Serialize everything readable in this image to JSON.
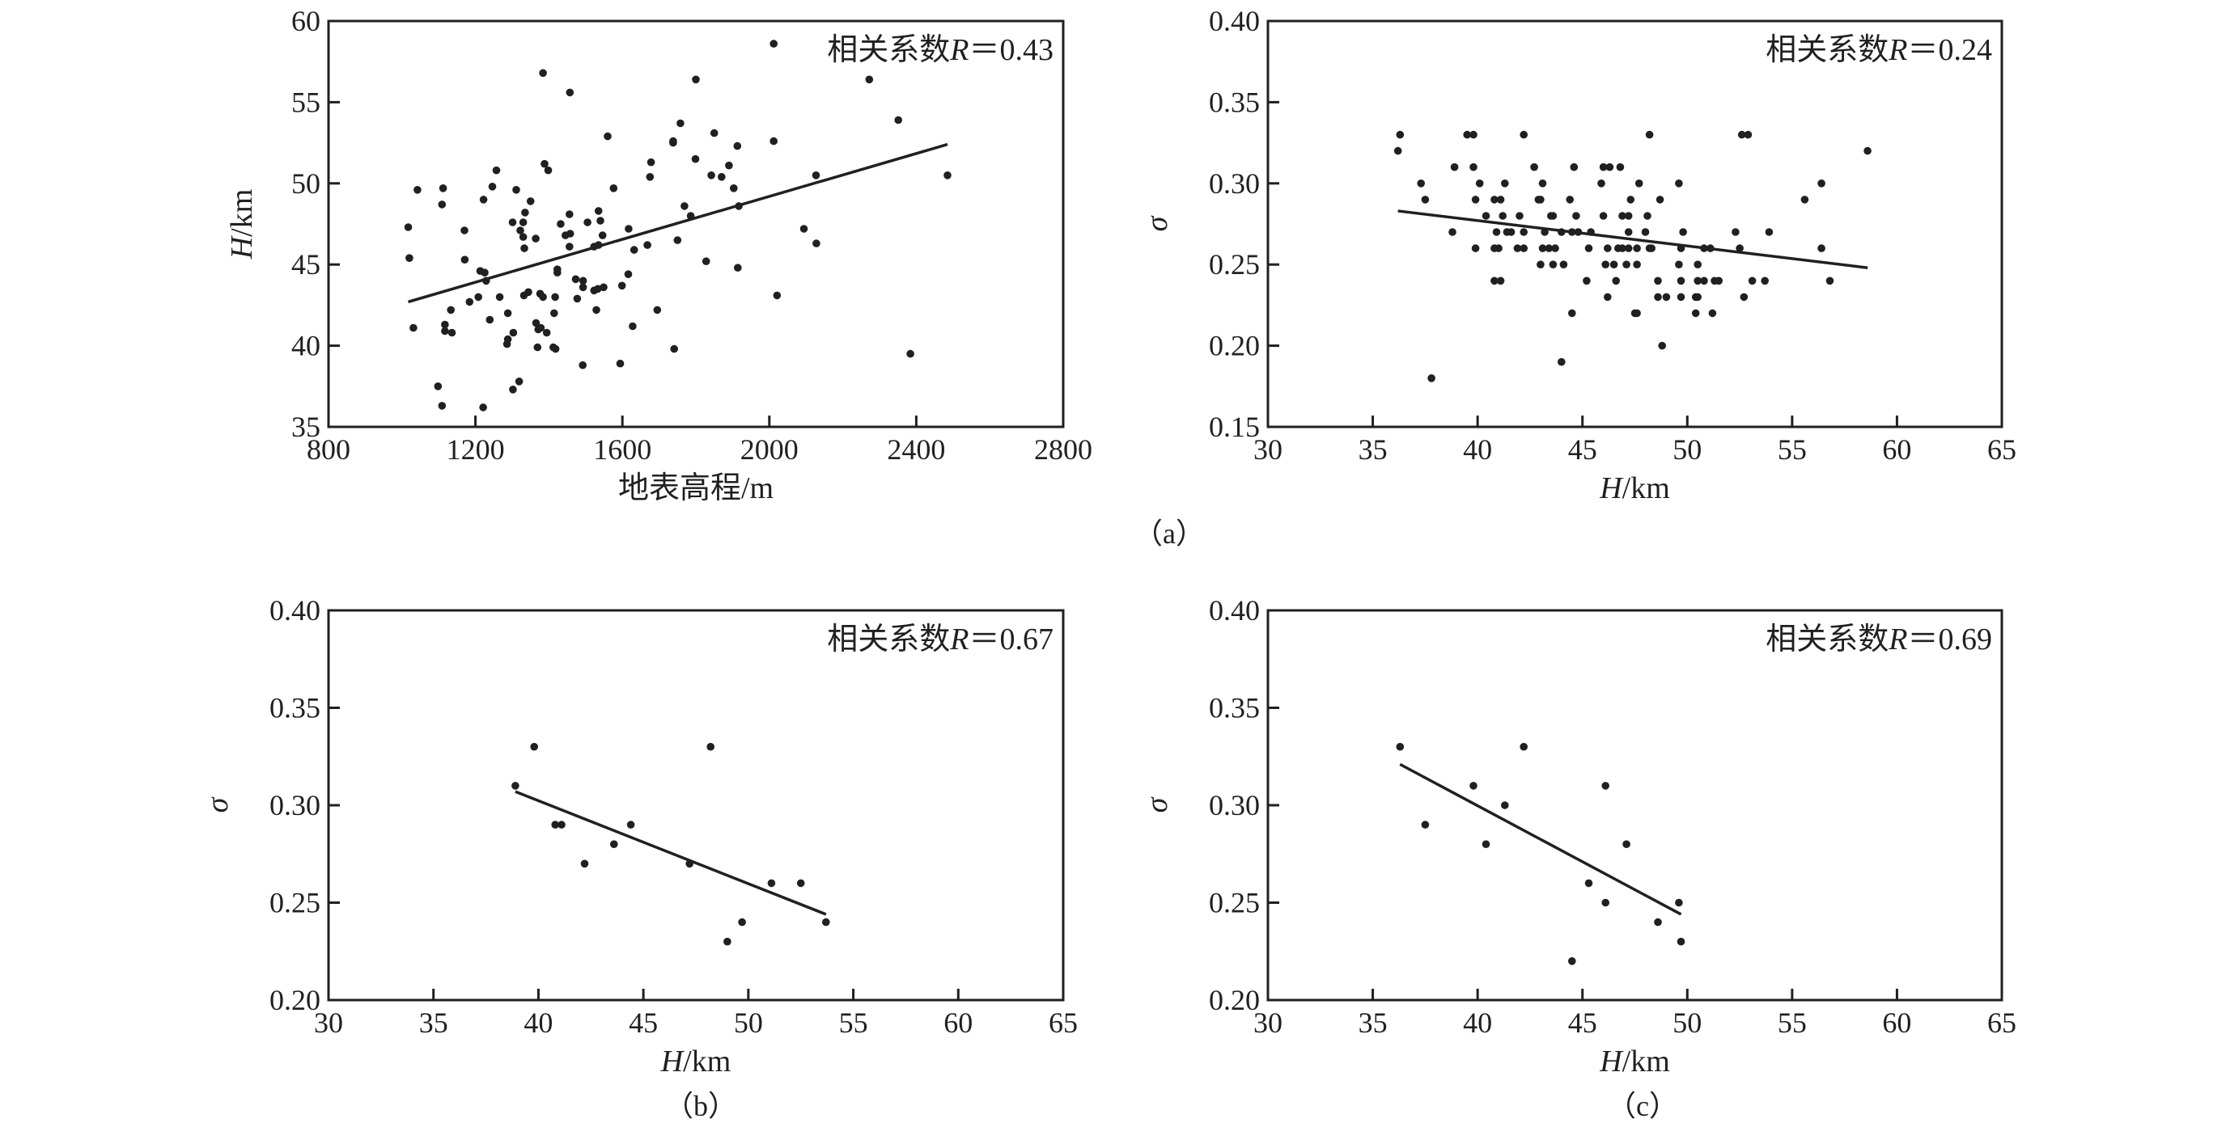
{
  "chart_data": [
    {
      "id": "a-left",
      "type": "scatter",
      "title": "",
      "xlabel": "地表高程/m",
      "ylabel": {
        "var": "H",
        "unit": "/km"
      },
      "xlim": [
        800,
        2800
      ],
      "ylim": [
        35,
        60
      ],
      "xticks": [
        "800",
        "1200",
        "1600",
        "2000",
        "2400",
        "2800"
      ],
      "yticks": [
        "35",
        "40",
        "45",
        "50",
        "55",
        "60"
      ],
      "annotation": {
        "prefix": "相关系数",
        "var": "R",
        "value": "＝0.43"
      },
      "fit_line": [
        [
          1017,
          42.7
        ],
        [
          2485,
          52.4
        ]
      ],
      "points": [
        [
          1384,
          56.8
        ],
        [
          1457,
          55.6
        ],
        [
          1800,
          56.4
        ],
        [
          1758,
          53.7
        ],
        [
          1738,
          52.6
        ],
        [
          1738,
          52.5
        ],
        [
          1850,
          53.1
        ],
        [
          1560,
          52.9
        ],
        [
          1678,
          51.3
        ],
        [
          1675,
          50.4
        ],
        [
          1799,
          51.5
        ],
        [
          1842,
          50.5
        ],
        [
          1870,
          50.4
        ],
        [
          1890,
          51.1
        ],
        [
          1388,
          51.2
        ],
        [
          1398,
          50.8
        ],
        [
          1257,
          50.8
        ],
        [
          1246,
          49.8
        ],
        [
          1311,
          49.6
        ],
        [
          1222,
          49.0
        ],
        [
          1112,
          49.7
        ],
        [
          1042,
          49.6
        ],
        [
          1109,
          48.7
        ],
        [
          1350,
          48.9
        ],
        [
          1335,
          48.2
        ],
        [
          1576,
          49.7
        ],
        [
          1535,
          48.3
        ],
        [
          1456,
          48.1
        ],
        [
          1540,
          47.7
        ],
        [
          1301,
          47.6
        ],
        [
          1330,
          47.6
        ],
        [
          1505,
          47.6
        ],
        [
          1432,
          47.5
        ],
        [
          1017,
          47.3
        ],
        [
          1170,
          47.1
        ],
        [
          1322,
          47.1
        ],
        [
          1330,
          46.7
        ],
        [
          1364,
          46.6
        ],
        [
          1445,
          46.8
        ],
        [
          1458,
          46.9
        ],
        [
          1546,
          46.8
        ],
        [
          1617,
          47.2
        ],
        [
          1769,
          48.6
        ],
        [
          1786,
          48.0
        ],
        [
          1456,
          46.1
        ],
        [
          1523,
          46.1
        ],
        [
          1535,
          46.2
        ],
        [
          1668,
          46.2
        ],
        [
          1632,
          45.9
        ],
        [
          1750,
          46.5
        ],
        [
          1333,
          46.0
        ],
        [
          1020,
          45.4
        ],
        [
          1171,
          45.3
        ],
        [
          1828,
          45.2
        ],
        [
          1213,
          44.6
        ],
        [
          1225,
          44.5
        ],
        [
          1229,
          44.0
        ],
        [
          1423,
          44.7
        ],
        [
          1423,
          44.5
        ],
        [
          1473,
          44.1
        ],
        [
          1493,
          44.0
        ],
        [
          1493,
          43.6
        ],
        [
          1616,
          44.4
        ],
        [
          1599,
          43.7
        ],
        [
          1523,
          43.4
        ],
        [
          1533,
          43.5
        ],
        [
          1549,
          43.6
        ],
        [
          1344,
          43.3
        ],
        [
          1376,
          43.2
        ],
        [
          1384,
          43.0
        ],
        [
          1332,
          43.1
        ],
        [
          1266,
          43.0
        ],
        [
          1208,
          43.0
        ],
        [
          1184,
          42.7
        ],
        [
          1417,
          43.0
        ],
        [
          1477,
          42.9
        ],
        [
          1133,
          42.2
        ],
        [
          1529,
          42.2
        ],
        [
          1288,
          42.0
        ],
        [
          1414,
          42.0
        ],
        [
          1695,
          42.2
        ],
        [
          1239,
          41.6
        ],
        [
          1117,
          41.3
        ],
        [
          1117,
          40.9
        ],
        [
          1136,
          40.8
        ],
        [
          1031,
          41.1
        ],
        [
          1365,
          41.4
        ],
        [
          1371,
          41.0
        ],
        [
          1378,
          41.1
        ],
        [
          1394,
          40.8
        ],
        [
          1628,
          41.2
        ],
        [
          1303,
          40.8
        ],
        [
          1288,
          40.4
        ],
        [
          1286,
          40.1
        ],
        [
          1369,
          39.9
        ],
        [
          1412,
          39.9
        ],
        [
          1418,
          39.8
        ],
        [
          1741,
          39.8
        ],
        [
          1492,
          38.8
        ],
        [
          1594,
          38.9
        ],
        [
          1098,
          37.5
        ],
        [
          1319,
          37.8
        ],
        [
          1302,
          37.3
        ],
        [
          1109,
          36.3
        ],
        [
          1221,
          36.2
        ],
        [
          2012,
          58.6
        ],
        [
          2272,
          56.4
        ],
        [
          2351,
          53.9
        ],
        [
          1913,
          52.3
        ],
        [
          2012,
          52.6
        ],
        [
          1903,
          49.7
        ],
        [
          2127,
          50.5
        ],
        [
          2485,
          50.5
        ],
        [
          1917,
          48.6
        ],
        [
          2094,
          47.2
        ],
        [
          2128,
          46.3
        ],
        [
          1914,
          44.8
        ],
        [
          2021,
          43.1
        ],
        [
          2384,
          39.5
        ]
      ]
    },
    {
      "id": "a-right",
      "type": "scatter",
      "title": "",
      "xlabel": {
        "var": "H",
        "unit": "/km"
      },
      "ylabel": "σ",
      "xlim": [
        30,
        65
      ],
      "ylim": [
        0.15,
        0.4
      ],
      "xticks": [
        "30",
        "35",
        "40",
        "45",
        "50",
        "55",
        "60",
        "65"
      ],
      "yticks": [
        "0.15",
        "0.20",
        "0.25",
        "0.30",
        "0.35",
        "0.40"
      ],
      "annotation": {
        "prefix": "相关系数",
        "var": "R",
        "value": "＝0.24"
      },
      "caption": "（a）",
      "fit_line": [
        [
          36.2,
          0.283
        ],
        [
          58.6,
          0.248
        ]
      ],
      "points": [
        [
          36.3,
          0.33
        ],
        [
          39.5,
          0.33
        ],
        [
          39.8,
          0.33
        ],
        [
          42.2,
          0.33
        ],
        [
          48.2,
          0.33
        ],
        [
          52.6,
          0.33
        ],
        [
          52.9,
          0.33
        ],
        [
          36.2,
          0.32
        ],
        [
          58.6,
          0.32
        ],
        [
          38.9,
          0.31
        ],
        [
          39.8,
          0.31
        ],
        [
          42.7,
          0.31
        ],
        [
          44.6,
          0.31
        ],
        [
          46.0,
          0.31
        ],
        [
          46.3,
          0.31
        ],
        [
          46.8,
          0.31
        ],
        [
          37.3,
          0.3
        ],
        [
          40.1,
          0.3
        ],
        [
          41.3,
          0.3
        ],
        [
          43.1,
          0.3
        ],
        [
          45.9,
          0.3
        ],
        [
          47.7,
          0.3
        ],
        [
          49.6,
          0.3
        ],
        [
          56.4,
          0.3
        ],
        [
          37.5,
          0.29
        ],
        [
          39.9,
          0.29
        ],
        [
          40.8,
          0.29
        ],
        [
          41.1,
          0.29
        ],
        [
          42.9,
          0.29
        ],
        [
          43.0,
          0.29
        ],
        [
          44.4,
          0.29
        ],
        [
          47.3,
          0.29
        ],
        [
          48.7,
          0.29
        ],
        [
          55.6,
          0.29
        ],
        [
          40.4,
          0.28
        ],
        [
          41.2,
          0.28
        ],
        [
          42.0,
          0.28
        ],
        [
          43.5,
          0.28
        ],
        [
          43.6,
          0.28
        ],
        [
          44.7,
          0.28
        ],
        [
          46.0,
          0.28
        ],
        [
          46.9,
          0.28
        ],
        [
          47.2,
          0.28
        ],
        [
          48.1,
          0.28
        ],
        [
          38.8,
          0.27
        ],
        [
          40.9,
          0.27
        ],
        [
          41.4,
          0.27
        ],
        [
          41.6,
          0.27
        ],
        [
          42.2,
          0.27
        ],
        [
          43.2,
          0.27
        ],
        [
          44.0,
          0.27
        ],
        [
          44.5,
          0.27
        ],
        [
          44.8,
          0.27
        ],
        [
          45.4,
          0.27
        ],
        [
          47.2,
          0.27
        ],
        [
          48.0,
          0.27
        ],
        [
          49.8,
          0.27
        ],
        [
          52.3,
          0.27
        ],
        [
          53.9,
          0.27
        ],
        [
          39.9,
          0.26
        ],
        [
          40.8,
          0.26
        ],
        [
          41.0,
          0.26
        ],
        [
          41.9,
          0.26
        ],
        [
          42.2,
          0.26
        ],
        [
          43.1,
          0.26
        ],
        [
          43.4,
          0.26
        ],
        [
          43.7,
          0.26
        ],
        [
          45.3,
          0.26
        ],
        [
          46.2,
          0.26
        ],
        [
          46.7,
          0.26
        ],
        [
          46.9,
          0.26
        ],
        [
          47.2,
          0.26
        ],
        [
          47.6,
          0.26
        ],
        [
          48.2,
          0.26
        ],
        [
          48.3,
          0.26
        ],
        [
          49.7,
          0.26
        ],
        [
          50.8,
          0.26
        ],
        [
          51.1,
          0.26
        ],
        [
          52.5,
          0.26
        ],
        [
          56.4,
          0.26
        ],
        [
          43.0,
          0.25
        ],
        [
          43.6,
          0.25
        ],
        [
          44.1,
          0.25
        ],
        [
          46.1,
          0.25
        ],
        [
          46.5,
          0.25
        ],
        [
          47.1,
          0.25
        ],
        [
          47.6,
          0.25
        ],
        [
          49.6,
          0.25
        ],
        [
          50.5,
          0.25
        ],
        [
          40.8,
          0.24
        ],
        [
          41.1,
          0.24
        ],
        [
          45.2,
          0.24
        ],
        [
          46.6,
          0.24
        ],
        [
          48.6,
          0.24
        ],
        [
          49.7,
          0.24
        ],
        [
          50.5,
          0.24
        ],
        [
          50.8,
          0.24
        ],
        [
          51.3,
          0.24
        ],
        [
          51.5,
          0.24
        ],
        [
          53.1,
          0.24
        ],
        [
          53.7,
          0.24
        ],
        [
          56.8,
          0.24
        ],
        [
          46.2,
          0.23
        ],
        [
          48.6,
          0.23
        ],
        [
          49.0,
          0.23
        ],
        [
          49.7,
          0.23
        ],
        [
          50.4,
          0.23
        ],
        [
          50.5,
          0.23
        ],
        [
          52.7,
          0.23
        ],
        [
          44.5,
          0.22
        ],
        [
          47.5,
          0.22
        ],
        [
          47.6,
          0.22
        ],
        [
          50.4,
          0.22
        ],
        [
          51.2,
          0.22
        ],
        [
          48.8,
          0.2
        ],
        [
          44.0,
          0.19
        ],
        [
          37.8,
          0.18
        ]
      ]
    },
    {
      "id": "b",
      "type": "scatter",
      "title": "",
      "xlabel": {
        "var": "H",
        "unit": "/km"
      },
      "ylabel": "σ",
      "xlim": [
        30,
        65
      ],
      "ylim": [
        0.2,
        0.4
      ],
      "xticks": [
        "30",
        "35",
        "40",
        "45",
        "50",
        "55",
        "60",
        "65"
      ],
      "yticks": [
        "0.20",
        "0.25",
        "0.30",
        "0.35",
        "0.40"
      ],
      "annotation": {
        "prefix": "相关系数",
        "var": "R",
        "value": "＝0.67"
      },
      "caption": "（b）",
      "fit_line": [
        [
          38.9,
          0.307
        ],
        [
          53.7,
          0.244
        ]
      ],
      "points": [
        [
          38.9,
          0.31
        ],
        [
          39.8,
          0.33
        ],
        [
          40.8,
          0.29
        ],
        [
          41.1,
          0.29
        ],
        [
          42.2,
          0.27
        ],
        [
          43.6,
          0.28
        ],
        [
          44.4,
          0.29
        ],
        [
          47.2,
          0.27
        ],
        [
          48.2,
          0.33
        ],
        [
          49.0,
          0.23
        ],
        [
          49.7,
          0.24
        ],
        [
          51.1,
          0.26
        ],
        [
          52.5,
          0.26
        ],
        [
          53.7,
          0.24
        ]
      ]
    },
    {
      "id": "c",
      "type": "scatter",
      "title": "",
      "xlabel": {
        "var": "H",
        "unit": "/km"
      },
      "ylabel": "σ",
      "xlim": [
        30,
        65
      ],
      "ylim": [
        0.2,
        0.4
      ],
      "xticks": [
        "30",
        "35",
        "40",
        "45",
        "50",
        "55",
        "60",
        "65"
      ],
      "yticks": [
        "0.20",
        "0.25",
        "0.30",
        "0.35",
        "0.40"
      ],
      "annotation": {
        "prefix": "相关系数",
        "var": "R",
        "value": "＝0.69"
      },
      "caption": "（c）",
      "fit_line": [
        [
          36.3,
          0.321
        ],
        [
          49.7,
          0.244
        ]
      ],
      "points": [
        [
          36.3,
          0.33
        ],
        [
          37.5,
          0.29
        ],
        [
          39.8,
          0.31
        ],
        [
          40.4,
          0.28
        ],
        [
          41.3,
          0.3
        ],
        [
          42.2,
          0.33
        ],
        [
          44.5,
          0.22
        ],
        [
          45.3,
          0.26
        ],
        [
          46.1,
          0.31
        ],
        [
          46.1,
          0.25
        ],
        [
          47.1,
          0.28
        ],
        [
          48.6,
          0.24
        ],
        [
          49.6,
          0.25
        ],
        [
          49.7,
          0.23
        ]
      ]
    }
  ]
}
